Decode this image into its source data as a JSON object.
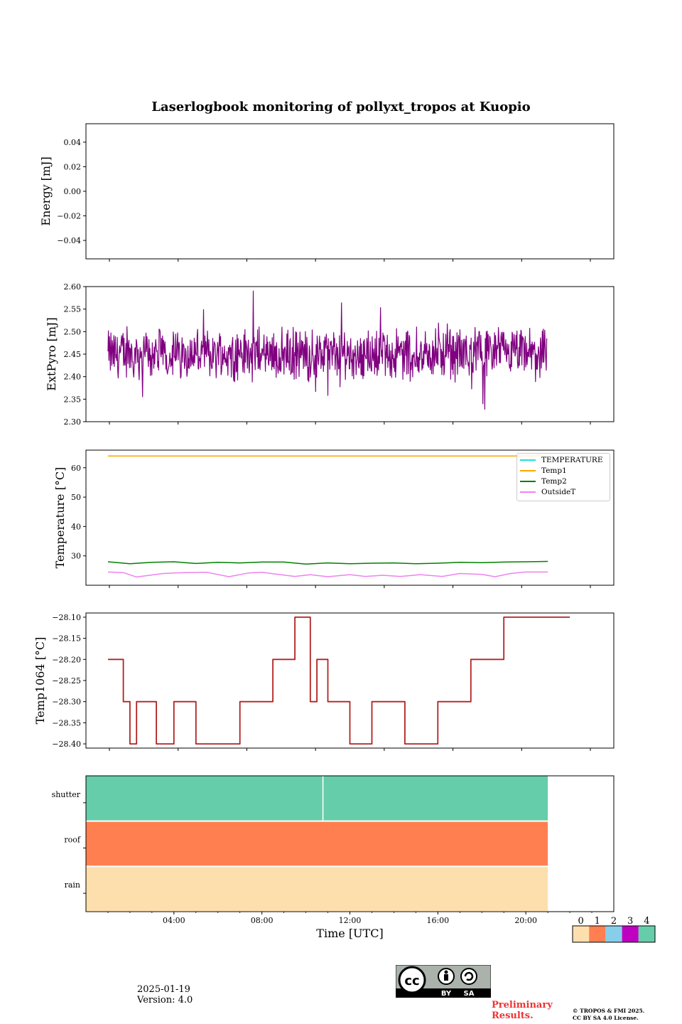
{
  "header": {
    "title": "Laserlogbook monitoring of pollyxt_tropos at Kuopio"
  },
  "footer": {
    "date": "2025-01-19",
    "version": "Version: 4.0",
    "preliminary_line1": "Preliminary",
    "preliminary_line2": "Results.",
    "copyright_line1": "© TROPOS & FMI 2025.",
    "copyright_line2": "CC BY SA 4.0 License.",
    "cc_badge": {
      "main": "cc",
      "by": "BY",
      "sa": "SA"
    }
  },
  "chart_data": [
    {
      "type": "line",
      "ylabel": "Energy [mJ]",
      "ylim": [
        -0.055,
        0.055
      ],
      "yticks": [
        "0.04",
        "0.02",
        "0.00",
        "−0.02",
        "−0.04"
      ],
      "ytick_values": [
        0.04,
        0.02,
        0.0,
        -0.02,
        -0.04
      ],
      "series": []
    },
    {
      "type": "line",
      "ylabel": "ExtPyro [mJ]",
      "ylim": [
        2.3,
        2.6
      ],
      "yticks": [
        "2.60",
        "2.55",
        "2.50",
        "2.45",
        "2.40",
        "2.35",
        "2.30"
      ],
      "ytick_values": [
        2.6,
        2.55,
        2.5,
        2.45,
        2.4,
        2.35,
        2.3
      ],
      "color": "#800080",
      "x_hours": [
        1.0,
        20.95
      ],
      "mean": 2.45,
      "min_approx": 2.31,
      "max_approx": 2.59
    },
    {
      "type": "line",
      "ylabel": "Temperature [°C]",
      "ylim": [
        20,
        66
      ],
      "yticks": [
        "60",
        "50",
        "40",
        "30"
      ],
      "ytick_values": [
        60,
        50,
        40,
        30
      ],
      "legend_position": "upper right",
      "series": [
        {
          "name": "TEMPERATURE",
          "color": "#22dddd",
          "values": []
        },
        {
          "name": "Temp1",
          "color": "#ffa500",
          "x": [
            1.0,
            21.0
          ],
          "values": [
            64.0,
            64.0
          ]
        },
        {
          "name": "Temp2",
          "color": "#008000",
          "x": [
            1.0,
            2.0,
            3.0,
            4.0,
            5.0,
            6.0,
            7.0,
            8.0,
            9.0,
            10.0,
            11.0,
            12.0,
            13.0,
            14.0,
            15.0,
            16.0,
            17.0,
            18.0,
            19.0,
            20.0,
            21.0
          ],
          "values": [
            28.0,
            27.3,
            27.8,
            28.0,
            27.4,
            27.8,
            27.6,
            27.9,
            27.9,
            27.2,
            27.6,
            27.3,
            27.5,
            27.6,
            27.3,
            27.5,
            27.8,
            27.7,
            27.9,
            28.0,
            28.1
          ]
        },
        {
          "name": "OutsideT",
          "color": "#ee82ee",
          "x": [
            1.0,
            1.7,
            2.3,
            3.5,
            4.5,
            5.5,
            6.5,
            7.4,
            8.0,
            9.5,
            10.2,
            11.0,
            12.0,
            12.7,
            13.5,
            14.3,
            15.2,
            16.2,
            17.0,
            18.0,
            18.6,
            19.3,
            20.0,
            21.0
          ],
          "values": [
            24.5,
            24.3,
            22.8,
            24.0,
            24.3,
            24.4,
            22.9,
            24.2,
            24.4,
            23.0,
            23.6,
            22.9,
            23.6,
            23.0,
            23.4,
            23.0,
            23.6,
            23.0,
            24.0,
            23.7,
            22.9,
            24.0,
            24.5,
            24.5
          ]
        }
      ]
    },
    {
      "type": "line",
      "ylabel": "Temp1064 [°C]",
      "ylim": [
        -28.41,
        -28.09
      ],
      "yticks": [
        "−28.10",
        "−28.15",
        "−28.20",
        "−28.25",
        "−28.30",
        "−28.35",
        "−28.40"
      ],
      "ytick_values": [
        -28.1,
        -28.15,
        -28.2,
        -28.25,
        -28.3,
        -28.35,
        -28.4
      ],
      "color": "#b22222",
      "x": [
        1.0,
        1.7,
        1.7,
        2.0,
        2.0,
        2.3,
        2.3,
        3.2,
        3.2,
        4.0,
        4.0,
        5.0,
        5.0,
        7.0,
        7.0,
        8.5,
        8.5,
        9.5,
        9.5,
        10.2,
        10.2,
        10.5,
        10.5,
        11.0,
        11.0,
        12.0,
        12.0,
        13.0,
        13.0,
        14.5,
        14.5,
        16.0,
        16.0,
        17.5,
        17.5,
        19.0,
        19.0,
        21.0,
        21.0,
        22.0
      ],
      "values": [
        -28.2,
        -28.2,
        -28.3,
        -28.3,
        -28.4,
        -28.4,
        -28.3,
        -28.3,
        -28.4,
        -28.4,
        -28.3,
        -28.3,
        -28.4,
        -28.4,
        -28.3,
        -28.3,
        -28.2,
        -28.2,
        -28.1,
        -28.1,
        -28.3,
        -28.3,
        -28.2,
        -28.2,
        -28.3,
        -28.3,
        -28.4,
        -28.4,
        -28.3,
        -28.3,
        -28.4,
        -28.4,
        -28.3,
        -28.3,
        -28.2,
        -28.2,
        -28.1,
        -28.1,
        -28.1,
        -28.1
      ]
    },
    {
      "type": "heatmap",
      "xlabel": "Time [UTC]",
      "xlim": [
        0,
        24
      ],
      "xticks": [
        "04:00",
        "08:00",
        "12:00",
        "16:00",
        "20:00"
      ],
      "xtick_values": [
        4,
        8,
        12,
        16,
        20
      ],
      "rows": [
        "shutter",
        "roof",
        "rain"
      ],
      "segments": [
        {
          "row": "shutter",
          "from": 0,
          "to": 10.75,
          "value": 4
        },
        {
          "row": "shutter",
          "from": 10.8,
          "to": 21.0,
          "value": 4
        },
        {
          "row": "roof",
          "from": 0,
          "to": 21.0,
          "value": 1
        },
        {
          "row": "rain",
          "from": 0,
          "to": 21.0,
          "value": 0
        }
      ],
      "colorbar": {
        "labels": [
          "0",
          "1",
          "2",
          "3",
          "4"
        ],
        "colors": [
          "#fddfad",
          "#ff7f50",
          "#87ceeb",
          "#c000c0",
          "#66cdaa"
        ]
      }
    }
  ]
}
